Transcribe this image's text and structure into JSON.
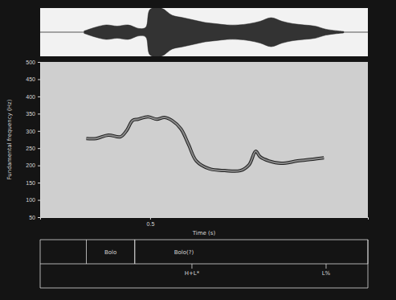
{
  "chart_data": {
    "type": "line",
    "y_label": "Fundamental frequency (Hz)",
    "x_label": "Time (s)",
    "xlim": [
      0,
      1.49
    ],
    "xticks": [
      0.5
    ],
    "ylim": [
      50,
      500
    ],
    "yticks": [
      50,
      100,
      150,
      200,
      250,
      300,
      350,
      400,
      450,
      500
    ],
    "x": [
      0.21,
      0.255,
      0.31,
      0.365,
      0.394,
      0.42,
      0.445,
      0.49,
      0.53,
      0.565,
      0.6,
      0.64,
      0.675,
      0.71,
      0.77,
      0.84,
      0.91,
      0.95,
      0.98,
      1.0,
      1.04,
      1.095,
      1.17,
      1.24,
      1.29
    ],
    "series": [
      {
        "color": "#8a8a8a",
        "values": [
          278,
          278,
          288,
          283,
          302,
          330,
          334,
          341,
          334,
          339,
          330,
          306,
          260,
          213,
          190,
          185,
          185,
          202,
          241,
          225,
          213,
          206,
          213,
          218,
          222
        ]
      }
    ],
    "waveform": {
      "x": [
        0.2,
        0.25,
        0.3,
        0.35,
        0.4,
        0.45,
        0.48,
        0.5,
        0.55,
        0.6,
        0.65,
        0.7,
        0.75,
        0.8,
        0.85,
        0.9,
        0.95,
        1.0,
        1.05,
        1.1,
        1.15,
        1.2,
        1.25,
        1.3,
        1.38
      ],
      "values": [
        0.05,
        0.2,
        0.3,
        0.25,
        0.3,
        0.15,
        0.2,
        0.95,
        1.0,
        0.7,
        0.6,
        0.5,
        0.4,
        0.35,
        0.3,
        0.3,
        0.35,
        0.45,
        0.6,
        0.45,
        0.35,
        0.3,
        0.25,
        0.12,
        0.03
      ],
      "ylim": [
        -1,
        1
      ]
    },
    "tiers": [
      {
        "intervals": [
          {
            "start": 0.21,
            "end": 0.43,
            "label": "Bolo"
          },
          {
            "start": 0.43,
            "end": 1.49,
            "label": "Bolo(?)"
          }
        ]
      },
      {
        "points": [
          {
            "time": 0.69,
            "label": "H+L*"
          },
          {
            "time": 1.3,
            "label": "L%"
          }
        ]
      }
    ]
  }
}
